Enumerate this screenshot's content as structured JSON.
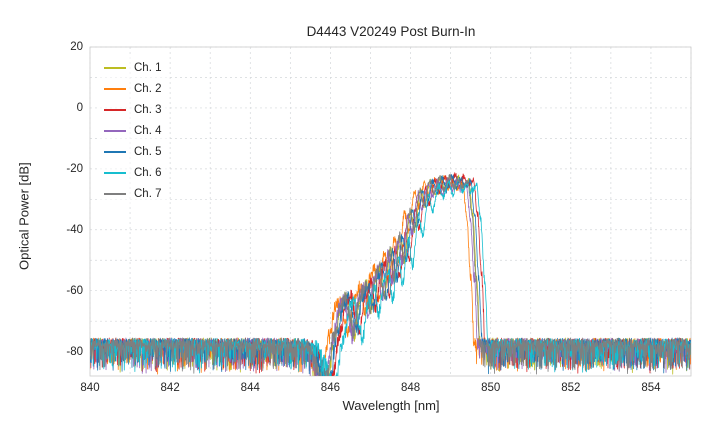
{
  "chart_data": {
    "type": "line",
    "title": "D4443 V20249 Post Burn-In",
    "xlabel": "Wavelength [nm]",
    "ylabel": "Optical Power [dB]",
    "xlim": [
      840,
      855
    ],
    "ylim": [
      -88,
      20
    ],
    "x_ticks": [
      840,
      842,
      844,
      846,
      848,
      850,
      852,
      854
    ],
    "y_ticks": [
      20,
      0,
      -20,
      -40,
      -60,
      -80
    ],
    "grid": {
      "show": true,
      "x_step": 1,
      "y_step": 10,
      "color": "#d4d7da",
      "dash": [
        2,
        3
      ]
    },
    "frame_color": "#cccccc",
    "legend_position": "upper-left",
    "noise": {
      "floor_db": -78.5,
      "jitter_up": 3.0,
      "spike_down": 9.0,
      "notch_center": 846.0,
      "notch_width": 0.45,
      "notch_depth": 16
    },
    "signal_envelope": [
      [
        840.0,
        -110
      ],
      [
        845.55,
        -110
      ],
      [
        845.75,
        -100
      ],
      [
        845.95,
        -88
      ],
      [
        846.1,
        -75
      ],
      [
        846.3,
        -64
      ],
      [
        846.4,
        -62
      ],
      [
        846.5,
        -68
      ],
      [
        846.6,
        -74
      ],
      [
        846.75,
        -62
      ],
      [
        846.9,
        -58
      ],
      [
        847.0,
        -66
      ],
      [
        847.15,
        -55
      ],
      [
        847.25,
        -52
      ],
      [
        847.35,
        -62
      ],
      [
        847.5,
        -47
      ],
      [
        847.6,
        -56
      ],
      [
        847.75,
        -42
      ],
      [
        847.85,
        -50
      ],
      [
        848.0,
        -34
      ],
      [
        848.1,
        -40
      ],
      [
        848.25,
        -27
      ],
      [
        848.35,
        -32
      ],
      [
        848.5,
        -24
      ],
      [
        848.6,
        -28
      ],
      [
        848.75,
        -23
      ],
      [
        848.85,
        -27
      ],
      [
        849.0,
        -22.5
      ],
      [
        849.1,
        -26
      ],
      [
        849.2,
        -23
      ],
      [
        849.3,
        -26
      ],
      [
        849.45,
        -24
      ],
      [
        849.55,
        -35
      ],
      [
        849.65,
        -55
      ],
      [
        849.75,
        -80
      ],
      [
        849.85,
        -110
      ],
      [
        855.0,
        -110
      ]
    ],
    "series": [
      {
        "name": "Ch. 1",
        "color": "#bcbd22",
        "offset_nm": 0.0,
        "gain_db": 0.0,
        "seed": 101
      },
      {
        "name": "Ch. 2",
        "color": "#ff7f0e",
        "offset_nm": -0.15,
        "gain_db": -0.5,
        "seed": 202
      },
      {
        "name": "Ch. 3",
        "color": "#d62728",
        "offset_nm": 0.12,
        "gain_db": 0.5,
        "seed": 303
      },
      {
        "name": "Ch. 4",
        "color": "#9467bd",
        "offset_nm": -0.06,
        "gain_db": -1.0,
        "seed": 404
      },
      {
        "name": "Ch. 5",
        "color": "#1f77b4",
        "offset_nm": 0.05,
        "gain_db": 0.0,
        "seed": 505
      },
      {
        "name": "Ch. 6",
        "color": "#17becf",
        "offset_nm": 0.2,
        "gain_db": -1.5,
        "seed": 606
      },
      {
        "name": "Ch. 7",
        "color": "#7f7f7f",
        "offset_nm": -0.02,
        "gain_db": 0.0,
        "seed": 707
      }
    ]
  }
}
